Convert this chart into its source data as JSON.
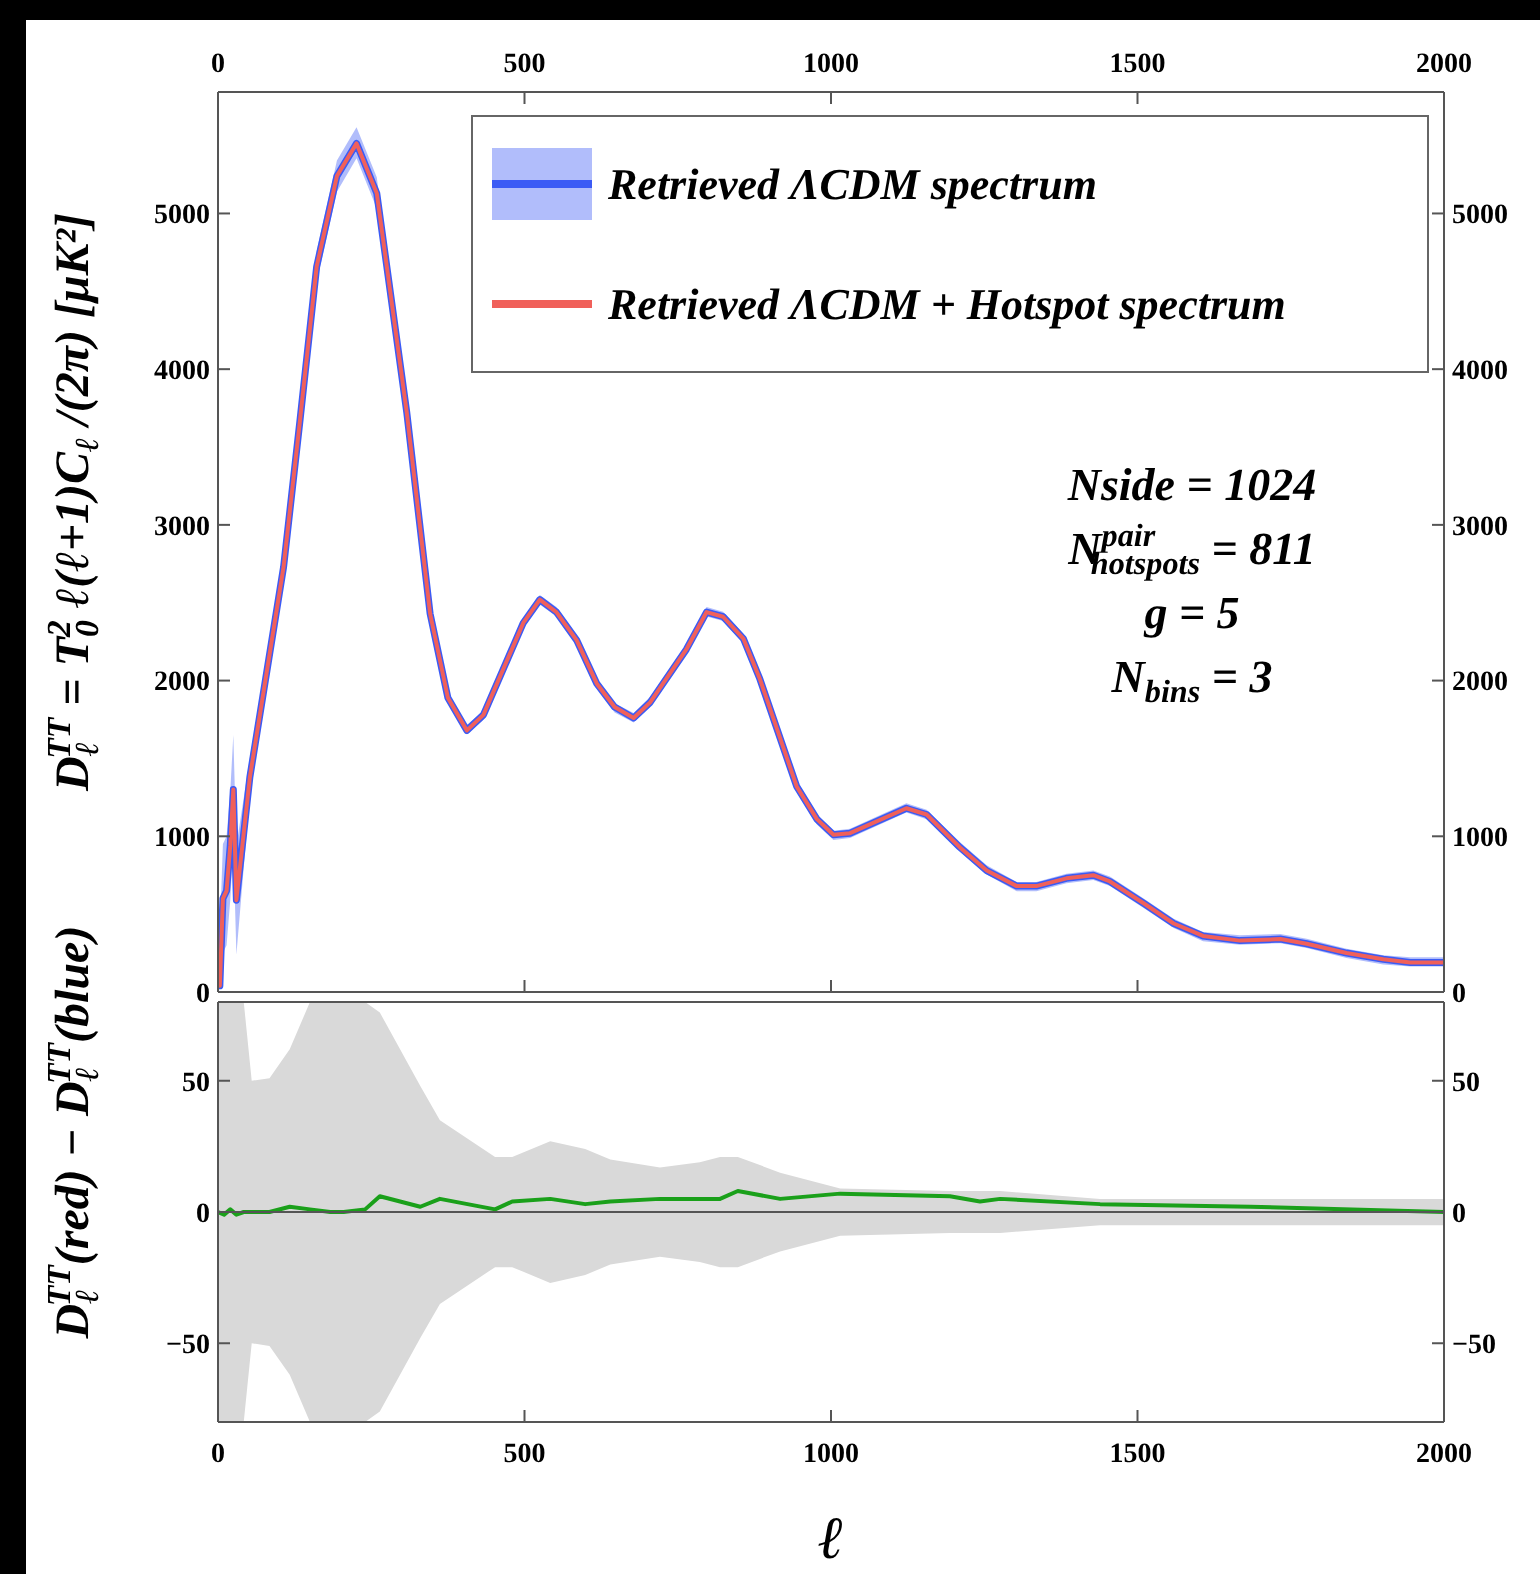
{
  "chart_data": [
    {
      "type": "line",
      "ylabel": "D$_{ℓ}$$^{TT}$ = T$_{0}$$^{2}$ ℓ(ℓ+1)C$_{ℓ}$ /(2π) [μK²]",
      "x": [
        3,
        8,
        14,
        20,
        25,
        30,
        52,
        107,
        134,
        161,
        194,
        226,
        259,
        308,
        346,
        375,
        406,
        433,
        498,
        525,
        552,
        585,
        618,
        647,
        678,
        705,
        764,
        797,
        824,
        857,
        884,
        944,
        977,
        1004,
        1031,
        1123,
        1156,
        1210,
        1254,
        1303,
        1335,
        1384,
        1428,
        1455,
        1510,
        1559,
        1607,
        1667,
        1733,
        1776,
        1841,
        1901,
        1945,
        2000
      ],
      "series": [
        {
          "name": "Retrieved ΛCDM spectrum",
          "color": "#3b5bf5",
          "values": [
            40,
            600,
            650,
            940,
            1300,
            590,
            1380,
            2730,
            3680,
            4660,
            5240,
            5450,
            5130,
            3720,
            2430,
            1890,
            1680,
            1780,
            2370,
            2520,
            2440,
            2260,
            1980,
            1830,
            1760,
            1860,
            2200,
            2440,
            2410,
            2270,
            2010,
            1320,
            1110,
            1010,
            1020,
            1180,
            1140,
            930,
            780,
            680,
            680,
            730,
            750,
            710,
            570,
            440,
            360,
            330,
            340,
            310,
            250,
            210,
            190,
            190
          ],
          "lower": [
            0,
            250,
            300,
            590,
            950,
            240,
            1264,
            2674,
            3616,
            4560,
            5140,
            5354,
            5032,
            3658,
            2403,
            1855,
            1654,
            1748,
            2340,
            2489,
            2412,
            2232,
            1954,
            1795,
            1731,
            1834,
            2168,
            2412,
            2382,
            2241,
            1975,
            1290,
            1075,
            976,
            989,
            1152,
            1110,
            904,
            754,
            647,
            647,
            699,
            720,
            681,
            540,
            411,
            326,
            304,
            313,
            282,
            218,
            176,
            163,
            163
          ],
          "upper": [
            390,
            950,
            1000,
            1290,
            1650,
            940,
            1504,
            2794,
            3736,
            4760,
            5340,
            5554,
            5232,
            3778,
            2463,
            1915,
            1714,
            1808,
            2400,
            2549,
            2472,
            2292,
            2014,
            1855,
            1791,
            1894,
            2228,
            2472,
            2442,
            2301,
            2035,
            1350,
            1135,
            1036,
            1049,
            1212,
            1170,
            964,
            814,
            707,
            707,
            759,
            780,
            741,
            600,
            471,
            386,
            364,
            373,
            342,
            278,
            236,
            223,
            223
          ]
        },
        {
          "name": "Retrieved ΛCDM + Hotspot spectrum",
          "color": "#f0605a",
          "values": [
            40,
            600,
            650,
            940,
            1300,
            590,
            1380,
            2730,
            3680,
            4660,
            5240,
            5450,
            5130,
            3720,
            2430,
            1890,
            1680,
            1780,
            2370,
            2520,
            2440,
            2260,
            1980,
            1830,
            1760,
            1860,
            2200,
            2440,
            2410,
            2270,
            2010,
            1320,
            1110,
            1010,
            1020,
            1180,
            1140,
            930,
            780,
            680,
            680,
            730,
            750,
            710,
            570,
            440,
            360,
            330,
            340,
            310,
            250,
            210,
            190,
            190
          ]
        }
      ],
      "xlim": [
        0,
        2000
      ],
      "xticks": [
        0,
        500,
        1000,
        1500,
        2000
      ],
      "tick_labels": "y",
      "x2lim": [
        0,
        2000
      ],
      "x2ticks": [
        0,
        500,
        1000,
        1500,
        2000
      ],
      "ylim": [
        0,
        5780
      ],
      "yticks": [
        0,
        1000,
        2000,
        3000,
        4000,
        5000
      ],
      "y2lim": [
        0,
        5780
      ],
      "y2ticks": [
        0,
        1000,
        2000,
        3000,
        4000,
        5000
      ],
      "legend": "top right",
      "annotations": [
        "Nside = 1024",
        "N$^{pair}$$_{hotspots}$ = 811",
        "g = 5",
        "N$_{bins}$ = 3"
      ]
    },
    {
      "type": "line",
      "xlabel": "ℓ",
      "ylabel": "D$_{ℓ}$$^{TT}$(red) − D$_{ℓ}$$^{TT}$(blue)",
      "x": [
        0,
        10,
        20,
        30,
        42,
        55,
        84,
        117,
        150,
        183,
        205,
        240,
        264,
        330,
        362,
        452,
        480,
        542,
        599,
        640,
        721,
        786,
        819,
        848,
        917,
        1015,
        1194,
        1243,
        1276,
        1439,
        1684,
        2000
      ],
      "series": [
        {
          "color": "#1aa01a",
          "values": [
            0,
            -1,
            1,
            -1,
            0,
            0,
            0,
            2,
            1,
            0,
            0,
            1,
            6,
            2,
            5,
            1,
            4,
            5,
            3,
            4,
            5,
            5,
            5,
            8,
            5,
            7,
            6,
            4,
            5,
            3,
            2,
            0
          ],
          "lower": [
            -80,
            -80,
            -80,
            -80,
            -80,
            -50,
            -51,
            -62,
            -80,
            -80,
            -80,
            -80,
            -76,
            -48,
            -35,
            -21,
            -21,
            -27,
            -24,
            -20,
            -17,
            -19,
            -21,
            -21,
            -15,
            -9,
            -8,
            -8,
            -8,
            -5,
            -5,
            -5
          ],
          "upper": [
            80,
            80,
            80,
            80,
            80,
            50,
            51,
            62,
            80,
            80,
            80,
            80,
            76,
            48,
            35,
            21,
            21,
            27,
            24,
            20,
            17,
            19,
            21,
            21,
            15,
            9,
            8,
            8,
            8,
            5,
            5,
            5
          ]
        }
      ],
      "xlim": [
        0,
        2000
      ],
      "xticks": [
        0,
        500,
        1000,
        1500,
        2000
      ],
      "ylim": [
        -80,
        80
      ],
      "yticks": [
        {
          "value": -50,
          "label": "−50"
        },
        0,
        50
      ],
      "y2lim": [
        -80,
        80
      ],
      "y2ticks": [
        {
          "value": -50,
          "label": "−50"
        },
        0,
        50
      ],
      "ref_lines": [
        {
          "axis": "y",
          "value": 0,
          "color": "#555555"
        }
      ]
    }
  ]
}
